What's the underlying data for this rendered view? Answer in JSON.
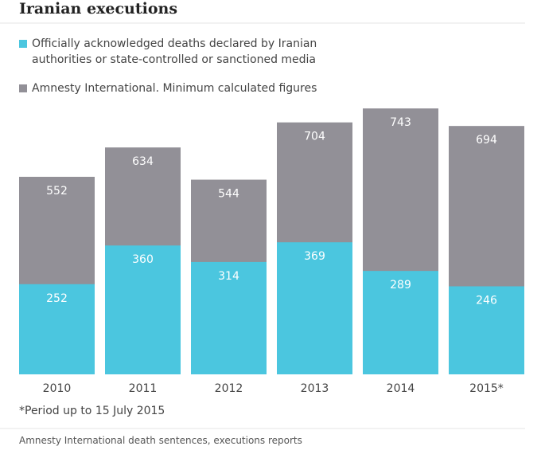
{
  "chart_data": {
    "type": "bar",
    "barmode": "overlay",
    "title": "Iranian executions",
    "categories": [
      "2010",
      "2011",
      "2012",
      "2013",
      "2014",
      "2015*"
    ],
    "series": [
      {
        "name": "Amnesty International. Minimum calculated figures",
        "color": "#929097",
        "values": [
          552,
          634,
          544,
          704,
          743,
          694
        ]
      },
      {
        "name": "Officially acknowledged deaths declared by Iranian authorities or state-controlled or sanctioned media",
        "color": "#4bc6df",
        "values": [
          252,
          360,
          314,
          369,
          289,
          246
        ]
      }
    ],
    "ylim": [
      0,
      750
    ],
    "note": "*Period up to 15 July 2015",
    "source": "Amnesty International death sentences, executions reports"
  }
}
